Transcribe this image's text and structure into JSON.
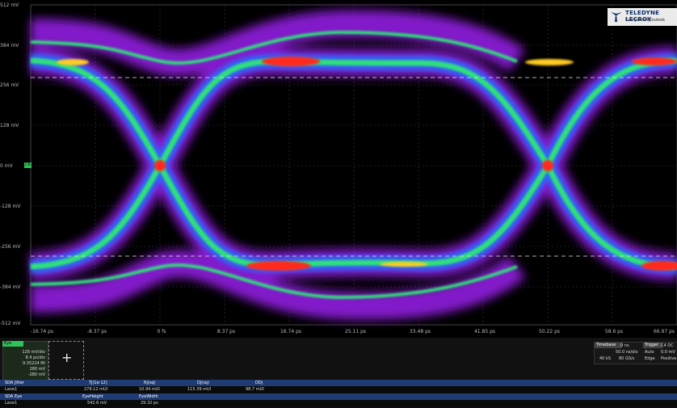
{
  "y_axis_labels": [
    "512 mV",
    "384 mV",
    "256 mV",
    "128 mV",
    "0 mV",
    "-128 mV",
    "-256 mV",
    "-384 mV",
    "-512 mV"
  ],
  "x_axis_labels": [
    "-16.74 ps",
    "-8.37 ps",
    "0 fs",
    "8.37 ps",
    "16.74 ps",
    "25.11 ps",
    "33.48 ps",
    "41.85 ps",
    "50.22 ps",
    "58.6 ps",
    "66.97 ps"
  ],
  "zero_marker": "C6",
  "logo": {
    "name": "TELEDYNE LECROY",
    "tagline": "Everywhereyoulook"
  },
  "trace": {
    "tag": "Eye",
    "scale": "128 mV/div",
    "time": "8.4 ps/div",
    "count": "9.35224 Mi",
    "top": "280 mV",
    "bottom": "-280 mV"
  },
  "add_button": "+",
  "timebase": {
    "header_timebase": "Timebase",
    "timebase_delay": "0 ns",
    "header_trigger": "Trigger",
    "trigger_status": "C4 DC",
    "div_value": "50.0 ns/div",
    "trigger_mode": "Auto",
    "trigger_level": "0.0 mV",
    "sample_pts": "40 kS",
    "sample_rate": "80 GS/s",
    "edge_label": "Edge",
    "edge_value": "Positive"
  },
  "measurements": {
    "jitter_header": {
      "name": "SDA Jitter",
      "cols": [
        "Tj(1e-12)",
        "Rj(sq)",
        "Dj(sq)",
        "DDj"
      ]
    },
    "jitter_row": {
      "name": "Lane1",
      "values": [
        "279.12 mUI",
        "10.94 mUI",
        "115.39 mUI",
        "98.7 mUI"
      ]
    },
    "eye_header": {
      "name": "SDA Eye",
      "cols": [
        "EyeHeight",
        "EyeWidth"
      ]
    },
    "eye_row": {
      "name": "Lane1",
      "values": [
        "542.6 mV",
        "29.32 ps"
      ]
    }
  },
  "colors": {
    "background": "#000000",
    "grid": "#3a3a3a",
    "header_row": "#1f3b73",
    "trace_tag": "#2fc25a"
  }
}
